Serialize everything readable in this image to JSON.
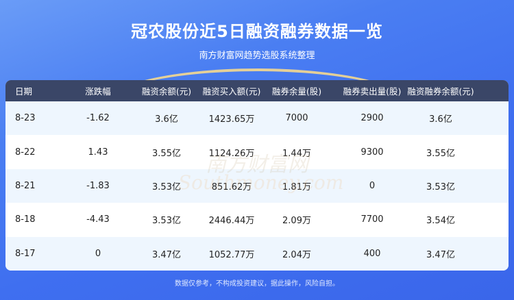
{
  "header": {
    "title": "冠农股份近5日融资融券数据一览",
    "subtitle": "南方财富网趋势选股系统整理"
  },
  "table": {
    "columns": [
      "日期",
      "涨跌幅",
      "融资余额(元)",
      "融资买入额(元)",
      "融券余量(股)",
      "融券卖出量(股)",
      "融资融券余额(元)"
    ],
    "rows": [
      [
        "8-23",
        "-1.62",
        "3.6亿",
        "1423.65万",
        "7000",
        "2900",
        "3.6亿"
      ],
      [
        "8-22",
        "1.43",
        "3.55亿",
        "1124.26万",
        "1.44万",
        "9300",
        "3.55亿"
      ],
      [
        "8-21",
        "-1.83",
        "3.53亿",
        "851.62万",
        "1.81万",
        "0",
        "3.53亿"
      ],
      [
        "8-18",
        "-4.43",
        "3.53亿",
        "2446.44万",
        "2.09万",
        "7700",
        "3.54亿"
      ],
      [
        "8-17",
        "0",
        "3.47亿",
        "1052.77万",
        "2.04万",
        "400",
        "3.47亿"
      ]
    ]
  },
  "watermark": {
    "cn": "南方财富网",
    "en": "Southmoney.com"
  },
  "footer": "数据仅参考，不构成投资建议，据此操作，风险自担。",
  "colors": {
    "background": "#4370ee",
    "table_header": "#3a4667",
    "row_alt": "#eef6fe"
  }
}
